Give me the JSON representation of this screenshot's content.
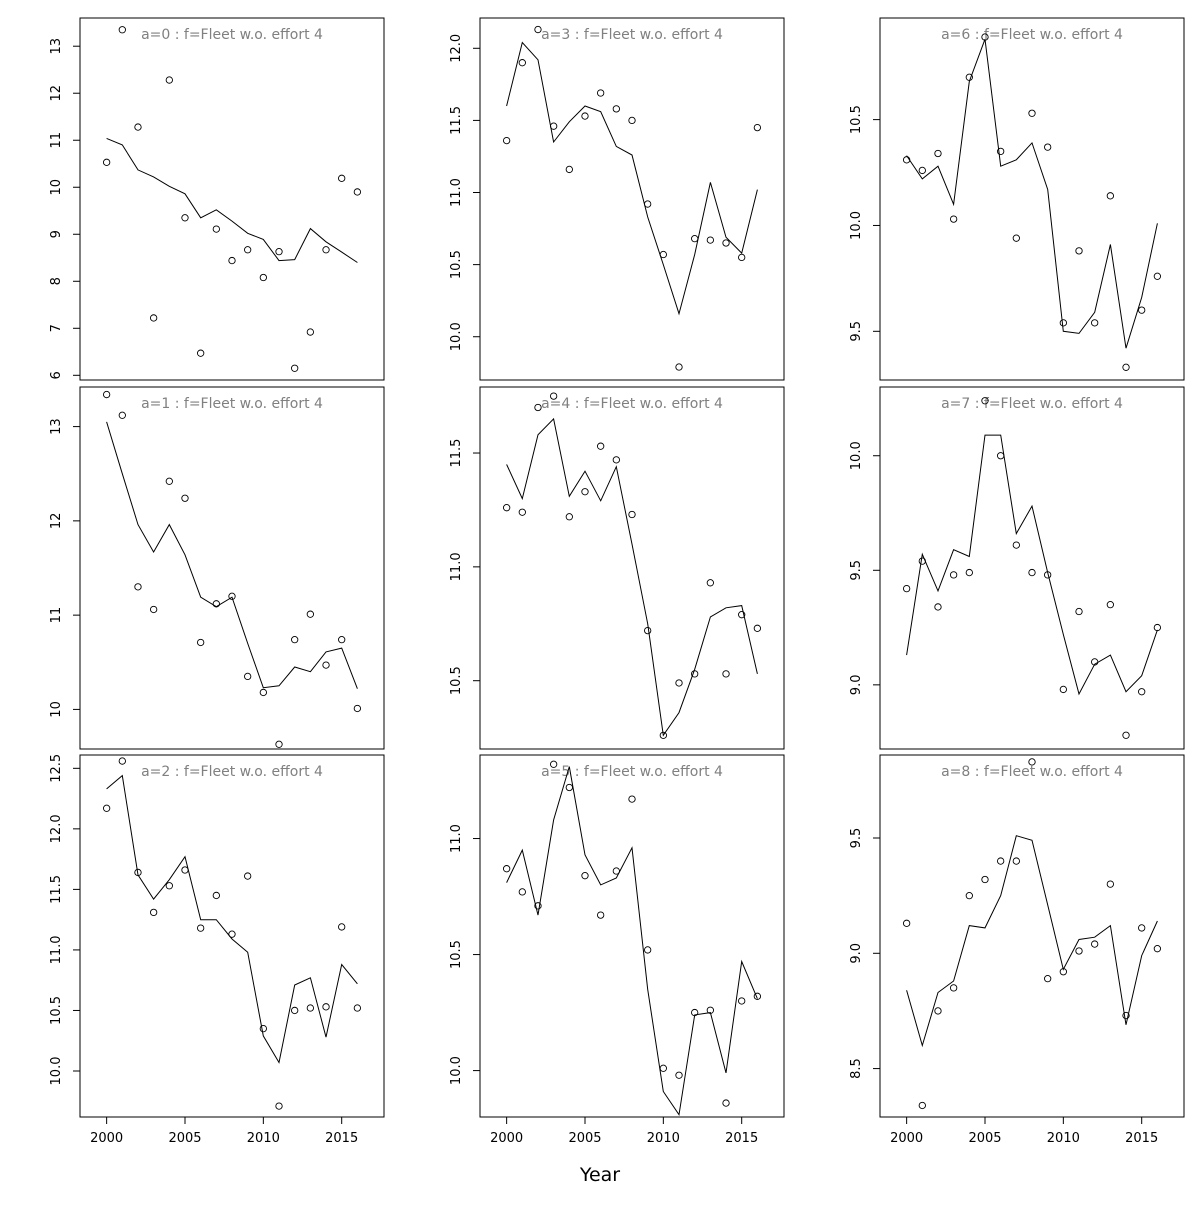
{
  "figure": {
    "xlabel": "Year"
  },
  "chart_data": [
    {
      "type": "line",
      "title": "a=0  :  f=Fleet w.o. effort 4",
      "xlim": [
        1998.3,
        2017.7
      ],
      "ylim": [
        5.9,
        13.6
      ],
      "x_ticks": [
        2000,
        2005,
        2010,
        2015
      ],
      "y_ticks": [
        6,
        7,
        8,
        9,
        10,
        11,
        12,
        13
      ],
      "x": [
        2000,
        2001,
        2002,
        2003,
        2004,
        2005,
        2006,
        2007,
        2008,
        2009,
        2010,
        2011,
        2012,
        2013,
        2014,
        2015,
        2016
      ],
      "series": [
        {
          "values": [
            11.04,
            10.9,
            10.37,
            10.22,
            10.02,
            9.86,
            9.35,
            9.52,
            9.28,
            9.02,
            8.89,
            8.44,
            8.46,
            9.12,
            8.84,
            8.62,
            8.4
          ]
        }
      ],
      "points": [
        10.53,
        13.35,
        11.28,
        7.22,
        12.28,
        9.35,
        6.47,
        9.11,
        8.44,
        8.67,
        8.08,
        8.63,
        6.15,
        6.92,
        8.67,
        10.19,
        9.9
      ]
    },
    {
      "type": "line",
      "title": "a=1  :  f=Fleet w.o. effort 4",
      "xlim": [
        1998.3,
        2017.7
      ],
      "ylim": [
        9.58,
        13.42
      ],
      "x_ticks": [
        2000,
        2005,
        2010,
        2015
      ],
      "y_ticks": [
        10,
        11,
        12,
        13
      ],
      "x": [
        2000,
        2001,
        2002,
        2003,
        2004,
        2005,
        2006,
        2007,
        2008,
        2009,
        2010,
        2011,
        2012,
        2013,
        2014,
        2015,
        2016
      ],
      "series": [
        {
          "values": [
            13.05,
            12.5,
            11.96,
            11.67,
            11.96,
            11.64,
            11.19,
            11.09,
            11.19,
            10.7,
            10.23,
            10.25,
            10.45,
            10.4,
            10.61,
            10.65,
            10.22
          ]
        }
      ],
      "points": [
        13.34,
        13.12,
        11.3,
        11.06,
        12.42,
        12.24,
        10.71,
        11.12,
        11.2,
        10.35,
        10.18,
        9.63,
        10.74,
        11.01,
        10.47,
        10.74,
        10.01
      ]
    },
    {
      "type": "line",
      "title": "a=2  :  f=Fleet w.o. effort 4",
      "xlim": [
        1998.3,
        2017.7
      ],
      "ylim": [
        9.62,
        12.61
      ],
      "x_ticks": [
        2000,
        2005,
        2010,
        2015
      ],
      "y_ticks": [
        10.0,
        10.5,
        11.0,
        11.5,
        12.0,
        12.5
      ],
      "x": [
        2000,
        2001,
        2002,
        2003,
        2004,
        2005,
        2006,
        2007,
        2008,
        2009,
        2010,
        2011,
        2012,
        2013,
        2014,
        2015,
        2016
      ],
      "series": [
        {
          "values": [
            12.33,
            12.44,
            11.62,
            11.42,
            11.58,
            11.77,
            11.25,
            11.25,
            11.09,
            10.98,
            10.29,
            10.07,
            10.71,
            10.77,
            10.28,
            10.88,
            10.72
          ]
        }
      ],
      "points": [
        12.17,
        12.56,
        11.64,
        11.31,
        11.53,
        11.66,
        11.18,
        11.45,
        11.13,
        11.61,
        10.35,
        9.71,
        10.5,
        10.52,
        10.53,
        11.19,
        10.52
      ]
    },
    {
      "type": "line",
      "title": "a=3  :  f=Fleet w.o. effort 4",
      "xlim": [
        1998.3,
        2017.7
      ],
      "ylim": [
        9.7,
        12.21
      ],
      "x_ticks": [
        2000,
        2005,
        2010,
        2015
      ],
      "y_ticks": [
        10.0,
        10.5,
        11.0,
        11.5,
        12.0
      ],
      "x": [
        2000,
        2001,
        2002,
        2003,
        2004,
        2005,
        2006,
        2007,
        2008,
        2009,
        2010,
        2011,
        2012,
        2013,
        2014,
        2015,
        2016
      ],
      "series": [
        {
          "values": [
            11.6,
            12.04,
            11.92,
            11.35,
            11.49,
            11.6,
            11.56,
            11.32,
            11.26,
            10.83,
            10.5,
            10.16,
            10.57,
            11.07,
            10.69,
            10.58,
            11.02
          ]
        }
      ],
      "points": [
        11.36,
        11.9,
        12.13,
        11.46,
        11.16,
        11.53,
        11.69,
        11.58,
        11.5,
        10.92,
        10.57,
        9.79,
        10.68,
        10.67,
        10.65,
        10.55,
        11.45
      ]
    },
    {
      "type": "line",
      "title": "a=4  :  f=Fleet w.o. effort 4",
      "xlim": [
        1998.3,
        2017.7
      ],
      "ylim": [
        10.2,
        11.79
      ],
      "x_ticks": [
        2000,
        2005,
        2010,
        2015
      ],
      "y_ticks": [
        10.5,
        11.0,
        11.5
      ],
      "x": [
        2000,
        2001,
        2002,
        2003,
        2004,
        2005,
        2006,
        2007,
        2008,
        2009,
        2010,
        2011,
        2012,
        2013,
        2014,
        2015,
        2016
      ],
      "series": [
        {
          "values": [
            11.45,
            11.3,
            11.58,
            11.65,
            11.31,
            11.42,
            11.29,
            11.44,
            11.1,
            10.75,
            10.26,
            10.36,
            10.55,
            10.78,
            10.82,
            10.83,
            10.53
          ]
        }
      ],
      "points": [
        11.26,
        11.24,
        11.7,
        11.75,
        11.22,
        11.33,
        11.53,
        11.47,
        11.23,
        10.72,
        10.26,
        10.49,
        10.53,
        10.93,
        10.53,
        10.79,
        10.73
      ]
    },
    {
      "type": "line",
      "title": "a=5  :  f=Fleet w.o. effort 4",
      "xlim": [
        1998.3,
        2017.7
      ],
      "ylim": [
        9.8,
        11.36
      ],
      "x_ticks": [
        2000,
        2005,
        2010,
        2015
      ],
      "y_ticks": [
        10.0,
        10.5,
        11.0
      ],
      "x": [
        2000,
        2001,
        2002,
        2003,
        2004,
        2005,
        2006,
        2007,
        2008,
        2009,
        2010,
        2011,
        2012,
        2013,
        2014,
        2015,
        2016
      ],
      "series": [
        {
          "values": [
            10.81,
            10.95,
            10.67,
            11.08,
            11.31,
            10.93,
            10.8,
            10.83,
            10.96,
            10.35,
            9.91,
            9.81,
            10.24,
            10.25,
            9.99,
            10.47,
            10.31
          ]
        }
      ],
      "points": [
        10.87,
        10.77,
        10.71,
        11.32,
        11.22,
        10.84,
        10.67,
        10.86,
        11.17,
        10.52,
        10.01,
        9.98,
        10.25,
        10.26,
        9.86,
        10.3,
        10.32
      ]
    },
    {
      "type": "line",
      "title": "a=6  :  f=Fleet w.o. effort 4",
      "xlim": [
        1998.3,
        2017.7
      ],
      "ylim": [
        9.27,
        10.98
      ],
      "x_ticks": [
        2000,
        2005,
        2010,
        2015
      ],
      "y_ticks": [
        9.5,
        10.0,
        10.5
      ],
      "x": [
        2000,
        2001,
        2002,
        2003,
        2004,
        2005,
        2006,
        2007,
        2008,
        2009,
        2010,
        2011,
        2012,
        2013,
        2014,
        2015,
        2016
      ],
      "series": [
        {
          "values": [
            10.33,
            10.22,
            10.28,
            10.1,
            10.68,
            10.88,
            10.28,
            10.31,
            10.39,
            10.17,
            9.5,
            9.49,
            9.59,
            9.91,
            9.42,
            9.66,
            10.01
          ]
        }
      ],
      "points": [
        10.31,
        10.26,
        10.34,
        10.03,
        10.7,
        10.89,
        10.35,
        9.94,
        10.53,
        10.37,
        9.54,
        9.88,
        9.54,
        10.14,
        9.33,
        9.6,
        9.76
      ]
    },
    {
      "type": "line",
      "title": "a=7  :  f=Fleet w.o. effort 4",
      "xlim": [
        1998.3,
        2017.7
      ],
      "ylim": [
        8.72,
        10.3
      ],
      "x_ticks": [
        2000,
        2005,
        2010,
        2015
      ],
      "y_ticks": [
        9.0,
        9.5,
        10.0
      ],
      "x": [
        2000,
        2001,
        2002,
        2003,
        2004,
        2005,
        2006,
        2007,
        2008,
        2009,
        2010,
        2011,
        2012,
        2013,
        2014,
        2015,
        2016
      ],
      "series": [
        {
          "values": [
            9.13,
            9.57,
            9.41,
            9.59,
            9.56,
            10.09,
            10.09,
            9.66,
            9.78,
            9.49,
            9.22,
            8.96,
            9.09,
            9.13,
            8.97,
            9.04,
            9.24
          ]
        }
      ],
      "points": [
        9.42,
        9.54,
        9.34,
        9.48,
        9.49,
        10.24,
        10.0,
        9.61,
        9.49,
        9.48,
        8.98,
        9.32,
        9.1,
        9.35,
        8.78,
        8.97,
        9.25
      ]
    },
    {
      "type": "line",
      "title": "a=8  :  f=Fleet w.o. effort 4",
      "xlim": [
        1998.3,
        2017.7
      ],
      "ylim": [
        8.29,
        9.86
      ],
      "x_ticks": [
        2000,
        2005,
        2010,
        2015
      ],
      "y_ticks": [
        8.5,
        9.0,
        9.5
      ],
      "x": [
        2000,
        2001,
        2002,
        2003,
        2004,
        2005,
        2006,
        2007,
        2008,
        2009,
        2010,
        2011,
        2012,
        2013,
        2014,
        2015,
        2016
      ],
      "series": [
        {
          "values": [
            8.84,
            8.6,
            8.83,
            8.88,
            9.12,
            9.11,
            9.25,
            9.51,
            9.49,
            9.21,
            8.93,
            9.06,
            9.07,
            9.12,
            8.69,
            8.99,
            9.14
          ]
        }
      ],
      "points": [
        9.13,
        8.34,
        8.75,
        8.85,
        9.25,
        9.32,
        9.4,
        9.4,
        9.83,
        8.89,
        8.92,
        9.01,
        9.04,
        9.3,
        8.73,
        9.11,
        9.02
      ]
    }
  ]
}
